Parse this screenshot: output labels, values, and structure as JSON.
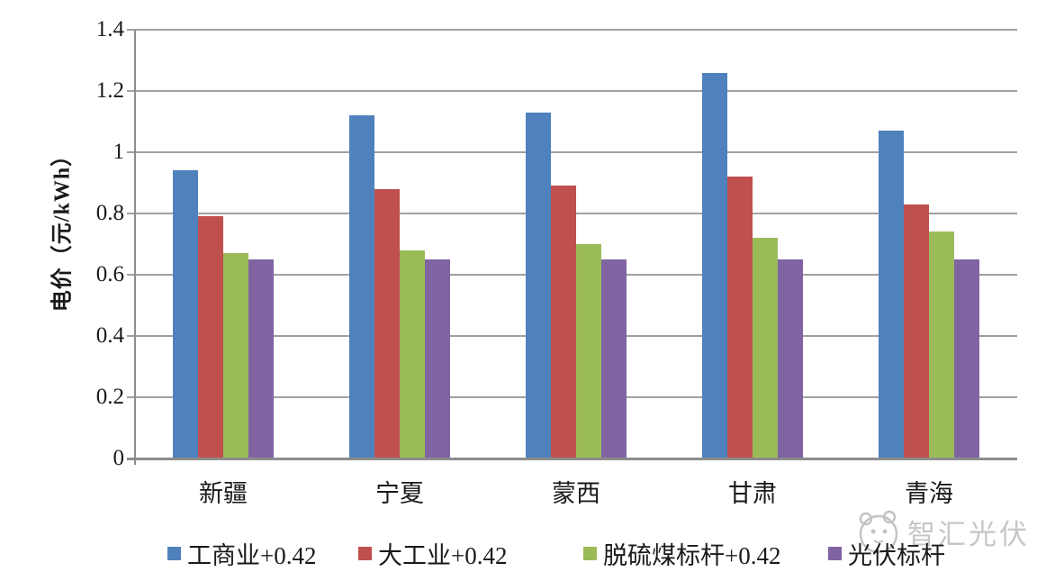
{
  "chart_data": {
    "type": "bar",
    "title": "",
    "categories": [
      "新疆",
      "宁夏",
      "蒙西",
      "甘肃",
      "青海"
    ],
    "series": [
      {
        "name": "工商业+0.42",
        "color": "#4f81bd",
        "values": [
          0.94,
          1.12,
          1.13,
          1.26,
          1.07
        ]
      },
      {
        "name": "大工业+0.42",
        "color": "#c0504d",
        "values": [
          0.79,
          0.88,
          0.89,
          0.92,
          0.83
        ]
      },
      {
        "name": "脱硫煤标杆+0.42",
        "color": "#9bbb59",
        "values": [
          0.67,
          0.68,
          0.7,
          0.72,
          0.74
        ]
      },
      {
        "name": "光伏标杆",
        "color": "#8064a2",
        "values": [
          0.65,
          0.65,
          0.65,
          0.65,
          0.65
        ]
      }
    ],
    "xlabel": "",
    "ylabel": "电价（元/kWh）",
    "ylim": [
      0,
      1.4
    ],
    "yticks": [
      "0",
      "0.2",
      "0.4",
      "0.6",
      "0.8",
      "1",
      "1.2",
      "1.4"
    ],
    "grid": true,
    "legend_position": "bottom"
  },
  "legend_x_positions": [
    186,
    398,
    648,
    920
  ],
  "watermark": {
    "text": "智汇光伏"
  },
  "colors": {
    "grid": "#a0a0a0",
    "axis": "#8c8c8c",
    "text": "#1a1a1a",
    "watermark": "#c6c6c6",
    "background": "#ffffff"
  }
}
